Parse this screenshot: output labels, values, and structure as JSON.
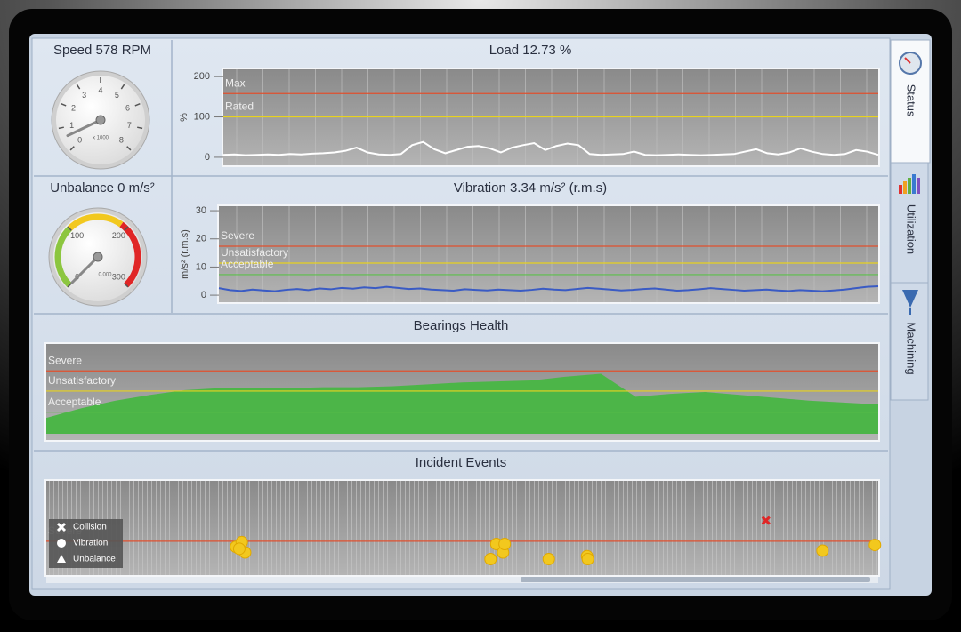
{
  "tabs": [
    "Status",
    "Utilization",
    "Machining"
  ],
  "chart_data": [
    {
      "type": "gauge",
      "title": "Speed 578 RPM",
      "value": 0.578,
      "lim": [
        0,
        8
      ],
      "ticks": [
        0,
        1,
        2,
        3,
        4,
        5,
        6,
        7,
        8
      ],
      "unit_label": "x 1000"
    },
    {
      "type": "line",
      "title": "Load 12.73 %",
      "ylabel": "%",
      "ylim": [
        -20,
        218
      ],
      "yticks": [
        0,
        100,
        200
      ],
      "grid": true,
      "thresholds": [
        {
          "label": "Max",
          "value": 158,
          "color": "#e0502e"
        },
        {
          "label": "Rated",
          "value": 100,
          "color": "#e8d21e"
        }
      ],
      "series": [
        {
          "color": "#ffffff",
          "values": [
            6,
            7,
            5,
            6,
            7,
            6,
            8,
            7,
            9,
            10,
            12,
            16,
            24,
            12,
            7,
            6,
            8,
            30,
            38,
            20,
            10,
            18,
            26,
            28,
            22,
            12,
            24,
            30,
            35,
            18,
            28,
            34,
            30,
            8,
            6,
            7,
            8,
            14,
            6,
            5,
            6,
            7,
            6,
            5,
            6,
            7,
            8,
            14,
            20,
            10,
            7,
            12,
            22,
            14,
            8,
            6,
            8,
            18,
            14,
            6
          ]
        }
      ]
    },
    {
      "type": "gauge",
      "title": "Unbalance 0 m/s²",
      "value": 0,
      "lim": [
        0,
        300
      ],
      "ticks": [
        0,
        100,
        200,
        300
      ],
      "readout": "0.000",
      "bands": [
        {
          "from": 0,
          "to": 100,
          "color": "#8cc63f"
        },
        {
          "from": 100,
          "to": 190,
          "color": "#f2c81e"
        },
        {
          "from": 190,
          "to": 300,
          "color": "#e02626"
        }
      ]
    },
    {
      "type": "line",
      "title": "Vibration 3.34 m/s² (r.m.s)",
      "ylabel": "m/s² (r.m.s)",
      "ylim": [
        -2.5,
        31.6
      ],
      "yticks": [
        0,
        10,
        20,
        30
      ],
      "grid": true,
      "thresholds": [
        {
          "label": "Severe",
          "value": 17.4,
          "color": "#e0502e"
        },
        {
          "label": "Unsatisfactory",
          "value": 11.4,
          "color": "#e8d21e"
        },
        {
          "label": "Acceptable",
          "value": 7.3,
          "color": "#5cc04a"
        }
      ],
      "series": [
        {
          "color": "#3a5bc4",
          "values": [
            2.5,
            1.8,
            1.5,
            2.0,
            1.7,
            1.4,
            1.9,
            2.2,
            1.8,
            2.4,
            2.1,
            2.6,
            2.3,
            2.8,
            2.5,
            3.0,
            2.6,
            2.2,
            2.4,
            2.0,
            1.8,
            1.6,
            2.1,
            1.9,
            1.7,
            2.0,
            1.8,
            1.6,
            1.9,
            2.3,
            2.0,
            1.8,
            2.2,
            2.6,
            2.3,
            2.0,
            1.7,
            1.9,
            2.2,
            2.4,
            2.0,
            1.6,
            1.8,
            2.1,
            2.5,
            2.2,
            1.9,
            1.6,
            1.8,
            2.0,
            1.7,
            1.5,
            1.8,
            1.6,
            1.4,
            1.7,
            2.0,
            2.5,
            3.0,
            3.2
          ]
        }
      ]
    },
    {
      "type": "area",
      "title": "Bearings Health",
      "ylim": [
        0,
        100
      ],
      "thresholds": [
        {
          "label": "Severe",
          "value": 72,
          "color": "#e0502e"
        },
        {
          "label": "Unsatisfactory",
          "value": 51,
          "color": "#e8d21e"
        },
        {
          "label": "Acceptable",
          "value": 29,
          "color": "#5cc04a"
        }
      ],
      "series": [
        {
          "color": "#4cb548",
          "values": [
            23,
            33,
            41,
            47,
            52,
            54,
            54,
            54,
            55,
            55,
            56,
            58,
            60,
            61,
            62,
            66,
            69,
            45,
            48,
            50,
            47,
            44,
            41,
            39,
            37
          ]
        }
      ]
    },
    {
      "type": "scatter",
      "title": "Incident Events",
      "xlim": [
        0,
        100
      ],
      "ylim": [
        0,
        100
      ],
      "thresholds": [
        {
          "label": "Severe",
          "value": 36,
          "color": "#e0502e"
        }
      ],
      "series": [
        {
          "name": "Collision",
          "color": "#e02626",
          "x": [
            86.5
          ],
          "y": [
            58
          ]
        },
        {
          "name": "Vibration",
          "color": "#f2c81e",
          "x": [
            22.8,
            23.5,
            23.9,
            23.2,
            54.1,
            54.9,
            53.4,
            55.1,
            60.4,
            65,
            65.1,
            93.3,
            99.6
          ],
          "y": [
            30,
            35,
            24,
            28,
            33,
            24,
            17,
            33,
            17,
            20,
            17,
            26,
            32
          ]
        },
        {
          "name": "Unbalance",
          "color": "#ffffff",
          "x": [],
          "y": []
        }
      ]
    }
  ]
}
